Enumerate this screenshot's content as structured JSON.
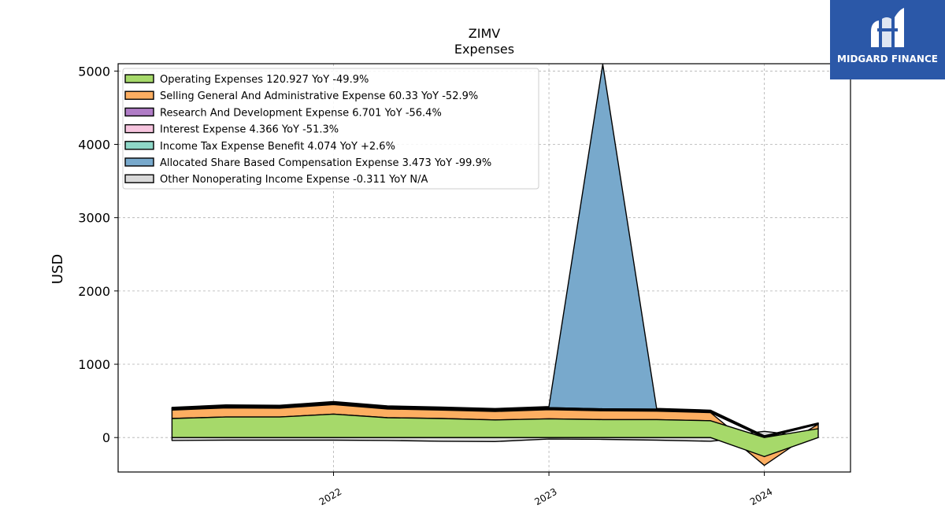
{
  "brand": {
    "name": "MIDGARD FINANCE",
    "background": "#2b58a8"
  },
  "chart_data": {
    "type": "area",
    "title": "ZIMV",
    "subtitle": "Expenses",
    "ylabel": "USD",
    "xlabel": "",
    "ylim": [
      -470,
      5100
    ],
    "yticks": [
      0,
      1000,
      2000,
      3000,
      4000,
      5000
    ],
    "xticks": [
      "2022",
      "2023",
      "2024"
    ],
    "grid": true,
    "legend_position": "top-left",
    "x": [
      "2021-04",
      "2021-07",
      "2021-10",
      "2022-01",
      "2022-04",
      "2022-07",
      "2022-10",
      "2023-01",
      "2023-04",
      "2023-07",
      "2023-10",
      "2024-01",
      "2024-04"
    ],
    "series": [
      {
        "name": "Operating Expenses",
        "legend": "Operating Expenses  120.927 YoY -49.9%",
        "color": "#a6d96a",
        "values": [
          260,
          280,
          280,
          320,
          270,
          260,
          240,
          255,
          245,
          245,
          230,
          -260,
          121
        ]
      },
      {
        "name": "Selling General And Administrative Expense",
        "legend": "Selling General And Administrative Expense  60.33 YoY -52.9%",
        "color": "#fdae61",
        "values": [
          115,
          125,
          120,
          130,
          120,
          115,
          115,
          125,
          120,
          115,
          110,
          -120,
          60
        ]
      },
      {
        "name": "Research And Development Expense",
        "legend": "Research And Development Expense  6.701 YoY -56.4%",
        "color": "#b07cc6",
        "values": [
          14,
          15,
          15,
          15,
          15,
          15,
          14,
          15,
          14,
          15,
          14,
          10,
          7
        ]
      },
      {
        "name": "Interest Expense",
        "legend": "Interest Expense  4.366 YoY -51.3%",
        "color": "#f7c5df",
        "values": [
          8,
          8,
          8,
          8,
          8,
          9,
          9,
          9,
          9,
          8,
          8,
          6,
          4
        ]
      },
      {
        "name": "Income Tax Expense Benefit",
        "legend": "Income Tax Expense Benefit  4.074 YoY +2.6%",
        "color": "#8fd8c8",
        "values": [
          5,
          5,
          5,
          5,
          4,
          4,
          4,
          4,
          4,
          4,
          4,
          4,
          4
        ]
      },
      {
        "name": "Allocated Share Based Compensation Expense",
        "legend": "Allocated Share Based Compensation Expense  3.473 YoY -99.9%",
        "color": "#78a9cc",
        "values": [
          10,
          12,
          12,
          13,
          14,
          14,
          14,
          15,
          4700,
          10,
          8,
          5,
          3
        ]
      },
      {
        "name": "Other Nonoperating Income Expense",
        "legend": "Other Nonoperating Income Expense  -0.311 YoY N/A",
        "color": "#d9d9d9",
        "values": [
          -40,
          -35,
          -35,
          -35,
          -40,
          -50,
          -55,
          -20,
          -25,
          -35,
          -50,
          60,
          -0.3
        ]
      }
    ]
  }
}
